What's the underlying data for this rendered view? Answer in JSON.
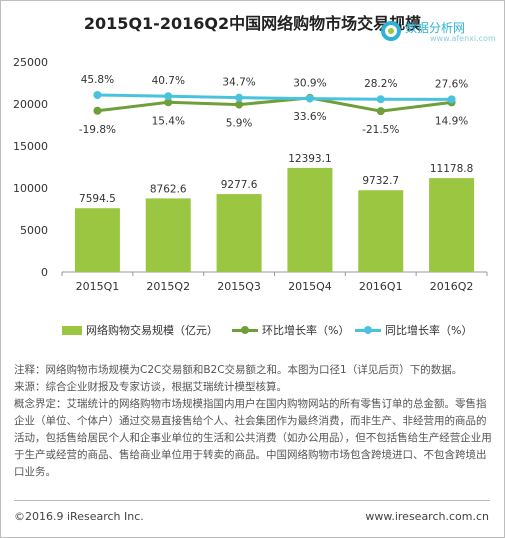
{
  "title": "2015Q1-2016Q2中国网络购物市场交易规模",
  "watermark": {
    "text": "数据分析网",
    "url": "www.afenxi.com"
  },
  "colors": {
    "bar": "#9bc641",
    "hb_line": "#6f9f3a",
    "tb_line": "#49c3dd",
    "axis": "#999999"
  },
  "chart_data": {
    "type": "bar",
    "title": "2015Q1-2016Q2中国网络购物市场交易规模",
    "categories": [
      "2015Q1",
      "2015Q2",
      "2015Q3",
      "2015Q4",
      "2016Q1",
      "2016Q2"
    ],
    "ylim": [
      0,
      25000
    ],
    "yticks": [
      "0",
      "5000",
      "10000",
      "15000",
      "20000",
      "25000"
    ],
    "grid": false,
    "legend_position": "bottom",
    "series": [
      {
        "name": "网络购物交易规模（亿元）",
        "kind": "bar",
        "values": [
          7594.5,
          8762.6,
          9277.6,
          12393.1,
          9732.7,
          11178.8
        ],
        "labels": [
          "7594.5",
          "8762.6",
          "9277.6",
          "12393.1",
          "9732.7",
          "11178.8"
        ]
      },
      {
        "name": "环比增长率（%）",
        "kind": "line",
        "values": [
          -19.8,
          15.4,
          5.9,
          33.6,
          -21.5,
          14.9
        ],
        "labels": [
          "-19.8%",
          "15.4%",
          "5.9%",
          "33.6%",
          "-21.5%",
          "14.9%"
        ]
      },
      {
        "name": "同比增长率（%）",
        "kind": "line",
        "values": [
          45.8,
          40.7,
          34.7,
          30.9,
          28.2,
          27.6
        ],
        "labels": [
          "45.8%",
          "40.7%",
          "34.7%",
          "30.9%",
          "28.2%",
          "27.6%"
        ]
      }
    ]
  },
  "notes": [
    "注释：网络购物市场规模为C2C交易额和B2C交易额之和。本图为口径1（详见后页）下的数据。",
    "来源：综合企业财报及专家访谈，根据艾瑞统计模型核算。",
    "概念界定：艾瑞统计的网络购物市场规模指国内用户在国内购物网站的所有零售订单的总金额。零售指企业（单位、个体户）通过交易直接售给个人、社会集团作为最终消费，而非生产、非经营用的商品的活动，包括售给居民个人和企事业单位的生活和公共消费（如办公用品），但不包括售给生产经营企业用于生产或经营的商品、售给商业单位用于转卖的商品。中国网络购物市场包含跨境进口、不包含跨境出口业务。"
  ],
  "footer": {
    "copyright": "©2016.9 iResearch Inc.",
    "website": "www.iresearch.com.cn"
  }
}
